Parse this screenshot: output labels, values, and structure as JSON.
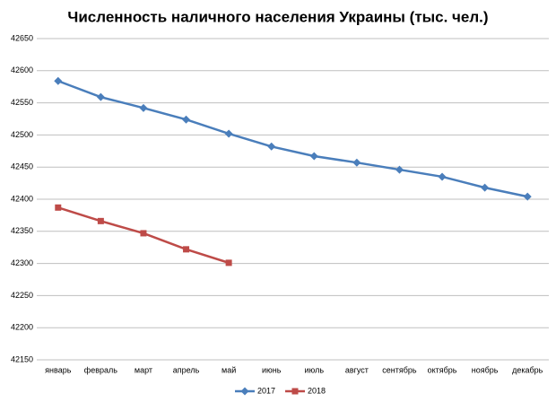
{
  "chart_data": {
    "type": "line",
    "title": "Численность наличного населения Украины (тыс. чел.)",
    "categories": [
      "январь",
      "февраль",
      "март",
      "апрель",
      "май",
      "июнь",
      "июль",
      "август",
      "сентябрь",
      "октябрь",
      "ноябрь",
      "декабрь"
    ],
    "series": [
      {
        "name": "2017",
        "color": "#4a7ebb",
        "marker": "diamond",
        "values": [
          42584,
          42559,
          42542,
          42524,
          42502,
          42482,
          42467,
          42457,
          42446,
          42435,
          42418,
          42404
        ]
      },
      {
        "name": "2018",
        "color": "#be4b48",
        "marker": "square",
        "values": [
          42387,
          42366,
          42347,
          42322,
          42301,
          null,
          null,
          null,
          null,
          null,
          null,
          null
        ]
      }
    ],
    "ylim": [
      42150,
      42650
    ],
    "yticks": [
      42150,
      42200,
      42250,
      42300,
      42350,
      42400,
      42450,
      42500,
      42550,
      42600,
      42650
    ],
    "grid": true,
    "legend": "bottom"
  }
}
